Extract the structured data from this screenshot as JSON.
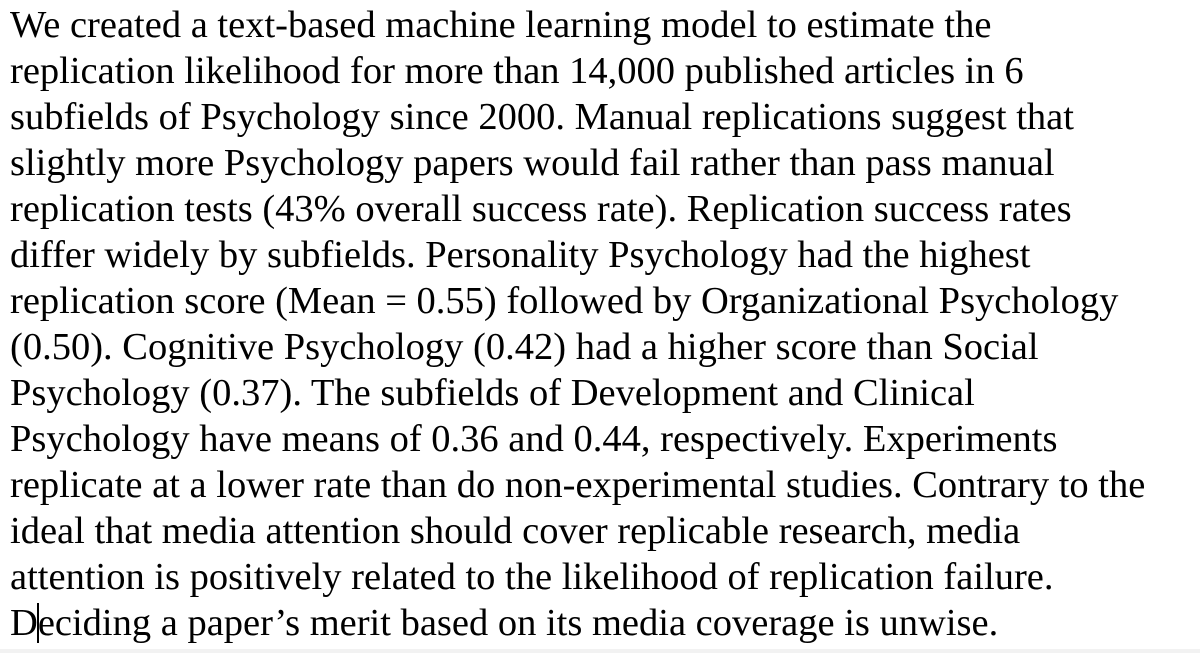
{
  "document": {
    "lines": [
      "We created a text-based machine learning model to estimate the",
      "replication likelihood for more than 14,000 published articles in 6",
      "subfields of Psychology since 2000. Manual replications suggest that",
      "slightly more Psychology papers would fail rather than pass manual",
      "replication tests (43% overall success rate). Replication success rates",
      "differ widely by subfields. Personality Psychology had the highest",
      "replication score (Mean = 0.55) followed by Organizational Psychology",
      "(0.50). Cognitive Psychology (0.42) had a higher score than Social",
      "Psychology (0.37). The subfields of Development and Clinical",
      "Psychology have means of 0.36 and 0.44, respectively. Experiments",
      "replicate at a lower rate than do non-experimental studies. Contrary to the",
      "ideal that media attention should cover replicable research, media",
      "attention is positively related to the likelihood of replication failure."
    ],
    "last_line_before_caret": "D",
    "last_line_after_caret": "eciding a paper’s merit based on its media coverage is unwise."
  }
}
